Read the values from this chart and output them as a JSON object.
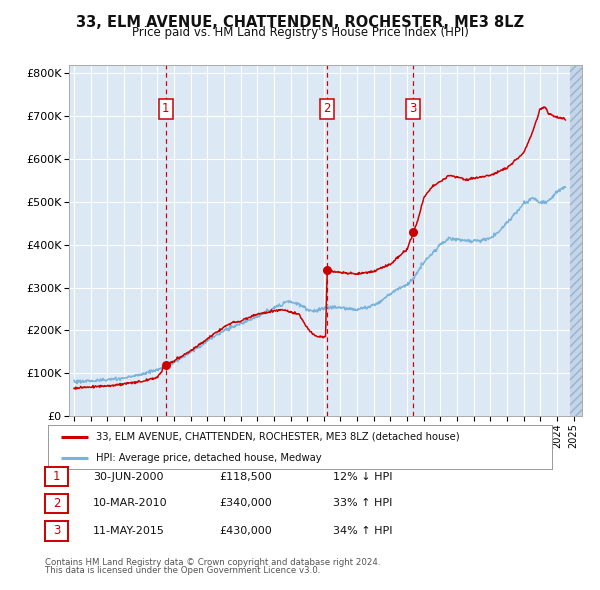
{
  "title": "33, ELM AVENUE, CHATTENDEN, ROCHESTER, ME3 8LZ",
  "subtitle": "Price paid vs. HM Land Registry's House Price Index (HPI)",
  "ylabel_ticks": [
    "£0",
    "£100K",
    "£200K",
    "£300K",
    "£400K",
    "£500K",
    "£600K",
    "£700K",
    "£800K"
  ],
  "ytick_values": [
    0,
    100000,
    200000,
    300000,
    400000,
    500000,
    600000,
    700000,
    800000
  ],
  "ylim": [
    0,
    820000
  ],
  "xlim_start": 1994.7,
  "xlim_end": 2025.5,
  "plot_bg_color": "#dce9f5",
  "grid_color": "#ffffff",
  "hpi_line_color": "#7ab3d9",
  "price_line_color": "#cc0000",
  "sale_marker_color": "#cc0000",
  "dashed_line_color": "#cc0000",
  "transactions": [
    {
      "num": 1,
      "date": "30-JUN-2000",
      "price": 118500,
      "year": 2000.5,
      "pct": "12%",
      "dir": "↓"
    },
    {
      "num": 2,
      "date": "10-MAR-2010",
      "price": 340000,
      "year": 2010.2,
      "pct": "33%",
      "dir": "↑"
    },
    {
      "num": 3,
      "date": "11-MAY-2015",
      "price": 430000,
      "year": 2015.37,
      "pct": "34%",
      "dir": "↑"
    }
  ],
  "legend_line1": "33, ELM AVENUE, CHATTENDEN, ROCHESTER, ME3 8LZ (detached house)",
  "legend_line2": "HPI: Average price, detached house, Medway",
  "footer1": "Contains HM Land Registry data © Crown copyright and database right 2024.",
  "footer2": "This data is licensed under the Open Government Licence v3.0.",
  "hpi_anchors": [
    [
      1995.0,
      80000
    ],
    [
      1996.0,
      82000
    ],
    [
      1997.0,
      84000
    ],
    [
      1998.0,
      88000
    ],
    [
      1999.0,
      97000
    ],
    [
      2000.0,
      108000
    ],
    [
      2000.5,
      115000
    ],
    [
      2001.0,
      125000
    ],
    [
      2002.0,
      148000
    ],
    [
      2003.0,
      175000
    ],
    [
      2004.0,
      200000
    ],
    [
      2005.0,
      215000
    ],
    [
      2006.0,
      232000
    ],
    [
      2007.0,
      252000
    ],
    [
      2007.8,
      268000
    ],
    [
      2008.5,
      262000
    ],
    [
      2009.0,
      248000
    ],
    [
      2009.5,
      245000
    ],
    [
      2010.2,
      255000
    ],
    [
      2011.0,
      252000
    ],
    [
      2012.0,
      248000
    ],
    [
      2013.0,
      258000
    ],
    [
      2014.0,
      285000
    ],
    [
      2015.0,
      308000
    ],
    [
      2015.4,
      322000
    ],
    [
      2016.0,
      358000
    ],
    [
      2017.0,
      400000
    ],
    [
      2017.5,
      415000
    ],
    [
      2018.0,
      412000
    ],
    [
      2019.0,
      408000
    ],
    [
      2020.0,
      415000
    ],
    [
      2020.5,
      430000
    ],
    [
      2021.0,
      452000
    ],
    [
      2022.0,
      495000
    ],
    [
      2022.5,
      510000
    ],
    [
      2023.0,
      498000
    ],
    [
      2023.5,
      502000
    ],
    [
      2024.0,
      525000
    ],
    [
      2024.5,
      535000
    ]
  ],
  "price_anchors": [
    [
      1995.0,
      65000
    ],
    [
      1996.0,
      68000
    ],
    [
      1997.0,
      70000
    ],
    [
      1998.0,
      75000
    ],
    [
      1999.0,
      80000
    ],
    [
      2000.0,
      90000
    ],
    [
      2000.5,
      118500
    ],
    [
      2001.0,
      128000
    ],
    [
      2002.0,
      152000
    ],
    [
      2003.0,
      180000
    ],
    [
      2004.0,
      208000
    ],
    [
      2004.5,
      218000
    ],
    [
      2005.0,
      222000
    ],
    [
      2006.0,
      238000
    ],
    [
      2007.0,
      245000
    ],
    [
      2007.5,
      248000
    ],
    [
      2008.0,
      242000
    ],
    [
      2008.5,
      238000
    ],
    [
      2009.0,
      205000
    ],
    [
      2009.5,
      185000
    ],
    [
      2010.1,
      185000
    ],
    [
      2010.2,
      340000
    ],
    [
      2010.5,
      338000
    ],
    [
      2011.0,
      335000
    ],
    [
      2012.0,
      332000
    ],
    [
      2013.0,
      338000
    ],
    [
      2014.0,
      355000
    ],
    [
      2015.0,
      390000
    ],
    [
      2015.4,
      430000
    ],
    [
      2015.7,
      465000
    ],
    [
      2016.0,
      510000
    ],
    [
      2016.5,
      535000
    ],
    [
      2017.0,
      548000
    ],
    [
      2017.5,
      562000
    ],
    [
      2018.0,
      558000
    ],
    [
      2018.5,
      552000
    ],
    [
      2019.0,
      555000
    ],
    [
      2020.0,
      562000
    ],
    [
      2021.0,
      580000
    ],
    [
      2022.0,
      615000
    ],
    [
      2022.5,
      660000
    ],
    [
      2023.0,
      718000
    ],
    [
      2023.3,
      722000
    ],
    [
      2023.5,
      705000
    ],
    [
      2024.0,
      698000
    ],
    [
      2024.5,
      693000
    ]
  ]
}
